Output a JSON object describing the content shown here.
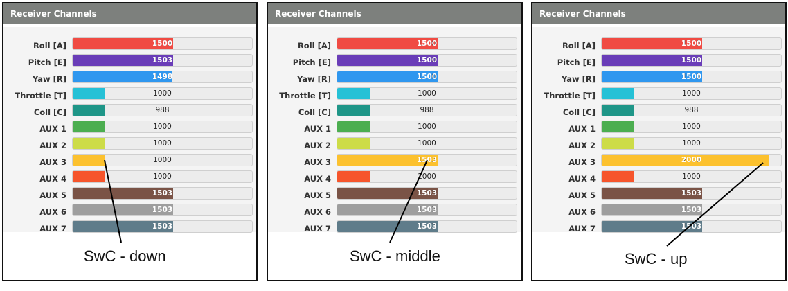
{
  "panels": [
    {
      "header": "Receiver Channels",
      "caption": "SwC - down",
      "channels": [
        {
          "label": "Roll [A]",
          "value": "1500",
          "fraction": 0.5,
          "color": "#f04b43"
        },
        {
          "label": "Pitch [E]",
          "value": "1503",
          "fraction": 0.503,
          "color": "#6a3db8"
        },
        {
          "label": "Yaw [R]",
          "value": "1498",
          "fraction": 0.498,
          "color": "#2f97ef"
        },
        {
          "label": "Throttle [T]",
          "value": "1000",
          "fraction": 0.0,
          "color": "#26c1d6"
        },
        {
          "label": "Coll [C]",
          "value": "988",
          "fraction": 0.0,
          "color": "#1f9688"
        },
        {
          "label": "AUX 1",
          "value": "1000",
          "fraction": 0.0,
          "color": "#4cae50"
        },
        {
          "label": "AUX 2",
          "value": "1000",
          "fraction": 0.0,
          "color": "#cddc48"
        },
        {
          "label": "AUX 3",
          "value": "1000",
          "fraction": 0.0,
          "color": "#fcc12e"
        },
        {
          "label": "AUX 4",
          "value": "1000",
          "fraction": 0.0,
          "color": "#f6552c"
        },
        {
          "label": "AUX 5",
          "value": "1503",
          "fraction": 0.503,
          "color": "#7a5346"
        },
        {
          "label": "AUX 6",
          "value": "1503",
          "fraction": 0.503,
          "color": "#9e9e9e"
        },
        {
          "label": "AUX 7",
          "value": "1503",
          "fraction": 0.503,
          "color": "#5f7c8a"
        }
      ]
    },
    {
      "header": "Receiver Channels",
      "caption": "SwC - middle",
      "channels": [
        {
          "label": "Roll [A]",
          "value": "1500",
          "fraction": 0.5,
          "color": "#f04b43"
        },
        {
          "label": "Pitch [E]",
          "value": "1500",
          "fraction": 0.5,
          "color": "#6a3db8"
        },
        {
          "label": "Yaw [R]",
          "value": "1500",
          "fraction": 0.5,
          "color": "#2f97ef"
        },
        {
          "label": "Throttle [T]",
          "value": "1000",
          "fraction": 0.0,
          "color": "#26c1d6"
        },
        {
          "label": "Coll [C]",
          "value": "988",
          "fraction": 0.0,
          "color": "#1f9688"
        },
        {
          "label": "AUX 1",
          "value": "1000",
          "fraction": 0.0,
          "color": "#4cae50"
        },
        {
          "label": "AUX 2",
          "value": "1000",
          "fraction": 0.0,
          "color": "#cddc48"
        },
        {
          "label": "AUX 3",
          "value": "1503",
          "fraction": 0.503,
          "color": "#fcc12e"
        },
        {
          "label": "AUX 4",
          "value": "1000",
          "fraction": 0.0,
          "color": "#f6552c"
        },
        {
          "label": "AUX 5",
          "value": "1503",
          "fraction": 0.503,
          "color": "#7a5346"
        },
        {
          "label": "AUX 6",
          "value": "1503",
          "fraction": 0.503,
          "color": "#9e9e9e"
        },
        {
          "label": "AUX 7",
          "value": "1503",
          "fraction": 0.503,
          "color": "#5f7c8a"
        }
      ]
    },
    {
      "header": "Receiver Channels",
      "caption": "SwC - up",
      "channels": [
        {
          "label": "Roll [A]",
          "value": "1500",
          "fraction": 0.5,
          "color": "#f04b43"
        },
        {
          "label": "Pitch [E]",
          "value": "1500",
          "fraction": 0.5,
          "color": "#6a3db8"
        },
        {
          "label": "Yaw [R]",
          "value": "1500",
          "fraction": 0.5,
          "color": "#2f97ef"
        },
        {
          "label": "Throttle [T]",
          "value": "1000",
          "fraction": 0.0,
          "color": "#26c1d6"
        },
        {
          "label": "Coll [C]",
          "value": "988",
          "fraction": 0.0,
          "color": "#1f9688"
        },
        {
          "label": "AUX 1",
          "value": "1000",
          "fraction": 0.0,
          "color": "#4cae50"
        },
        {
          "label": "AUX 2",
          "value": "1000",
          "fraction": 0.0,
          "color": "#cddc48"
        },
        {
          "label": "AUX 3",
          "value": "2000",
          "fraction": 1.0,
          "color": "#fcc12e"
        },
        {
          "label": "AUX 4",
          "value": "1000",
          "fraction": 0.0,
          "color": "#f6552c"
        },
        {
          "label": "AUX 5",
          "value": "1503",
          "fraction": 0.503,
          "color": "#7a5346"
        },
        {
          "label": "AUX 6",
          "value": "1503",
          "fraction": 0.503,
          "color": "#9e9e9e"
        },
        {
          "label": "AUX 7",
          "value": "1503",
          "fraction": 0.503,
          "color": "#5f7c8a"
        }
      ]
    }
  ]
}
